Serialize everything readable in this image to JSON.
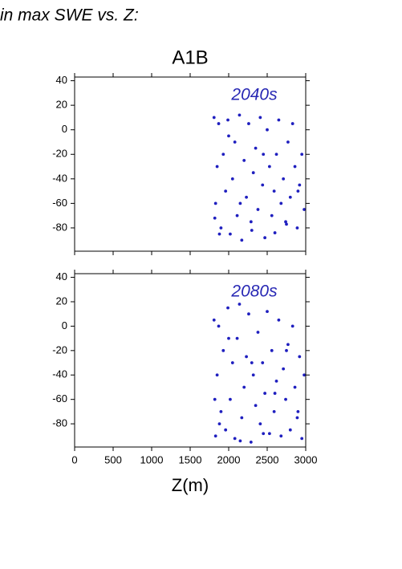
{
  "header": {
    "title": "in max SWE vs. Z:"
  },
  "chart_data": [
    {
      "type": "scatter",
      "title": "A1B",
      "annotation": "2040s",
      "annotation_color": "#2828b4",
      "xlim": [
        0,
        3000
      ],
      "xticks": [
        0,
        500,
        1000,
        1500,
        2000,
        2500,
        3000
      ],
      "xtick_labels": false,
      "ylim": [
        -99,
        43
      ],
      "yticks": [
        40,
        20,
        0,
        -20,
        -40,
        -60,
        -80
      ],
      "x": [
        1810,
        1830,
        1850,
        1870,
        1900,
        1930,
        1960,
        1990,
        2020,
        2050,
        2080,
        2110,
        2140,
        2170,
        2200,
        2230,
        2260,
        2290,
        2320,
        2350,
        2380,
        2410,
        2440,
        2470,
        2500,
        2530,
        2560,
        2590,
        2620,
        2650,
        2680,
        2710,
        2740,
        2770,
        2800,
        2830,
        2860,
        2890,
        2920,
        2950,
        2980,
        1820,
        1880,
        2000,
        2150,
        2300,
        2450,
        2600,
        2750,
        2900
      ],
      "series": [
        {
          "color": "#1f1fbf",
          "values": [
            10,
            -60,
            -30,
            5,
            -80,
            -20,
            -50,
            8,
            -85,
            -40,
            -10,
            -70,
            12,
            -90,
            -25,
            -55,
            5,
            -75,
            -35,
            -15,
            -65,
            10,
            -45,
            -88,
            0,
            -30,
            -70,
            -50,
            -20,
            8,
            -60,
            -40,
            -75,
            -10,
            -55,
            5,
            -30,
            -80,
            -45,
            -20,
            -65,
            -72,
            -85,
            -5,
            -60,
            -82,
            -20,
            -84,
            -77,
            -50
          ]
        }
      ]
    },
    {
      "type": "scatter",
      "annotation": "2080s",
      "annotation_color": "#2828b4",
      "xlabel": "Z(m)",
      "xlim": [
        0,
        3000
      ],
      "xticks": [
        0,
        500,
        1000,
        1500,
        2000,
        2500,
        3000
      ],
      "xtick_labels": true,
      "ylim": [
        -99,
        43
      ],
      "yticks": [
        40,
        20,
        0,
        -20,
        -40,
        -60,
        -80
      ],
      "x": [
        1810,
        1830,
        1850,
        1870,
        1900,
        1930,
        1960,
        1990,
        2020,
        2050,
        2080,
        2110,
        2140,
        2170,
        2200,
        2230,
        2260,
        2290,
        2320,
        2350,
        2380,
        2410,
        2440,
        2470,
        2500,
        2530,
        2560,
        2590,
        2620,
        2650,
        2680,
        2710,
        2740,
        2770,
        2800,
        2830,
        2860,
        2890,
        2920,
        2950,
        2980,
        1820,
        1880,
        2000,
        2150,
        2300,
        2450,
        2600,
        2750,
        2900
      ],
      "series": [
        {
          "color": "#1f1fbf",
          "values": [
            5,
            -90,
            -40,
            0,
            -70,
            -20,
            -85,
            15,
            -60,
            -30,
            -92,
            -10,
            18,
            -75,
            -50,
            -25,
            10,
            -95,
            -40,
            -65,
            -5,
            -80,
            -30,
            -55,
            12,
            -88,
            -20,
            -70,
            -45,
            5,
            -90,
            -35,
            -60,
            -15,
            -85,
            0,
            -50,
            -75,
            -25,
            -92,
            -40,
            -60,
            -80,
            -10,
            -94,
            -30,
            -88,
            -55,
            -20,
            -70
          ]
        }
      ]
    }
  ]
}
